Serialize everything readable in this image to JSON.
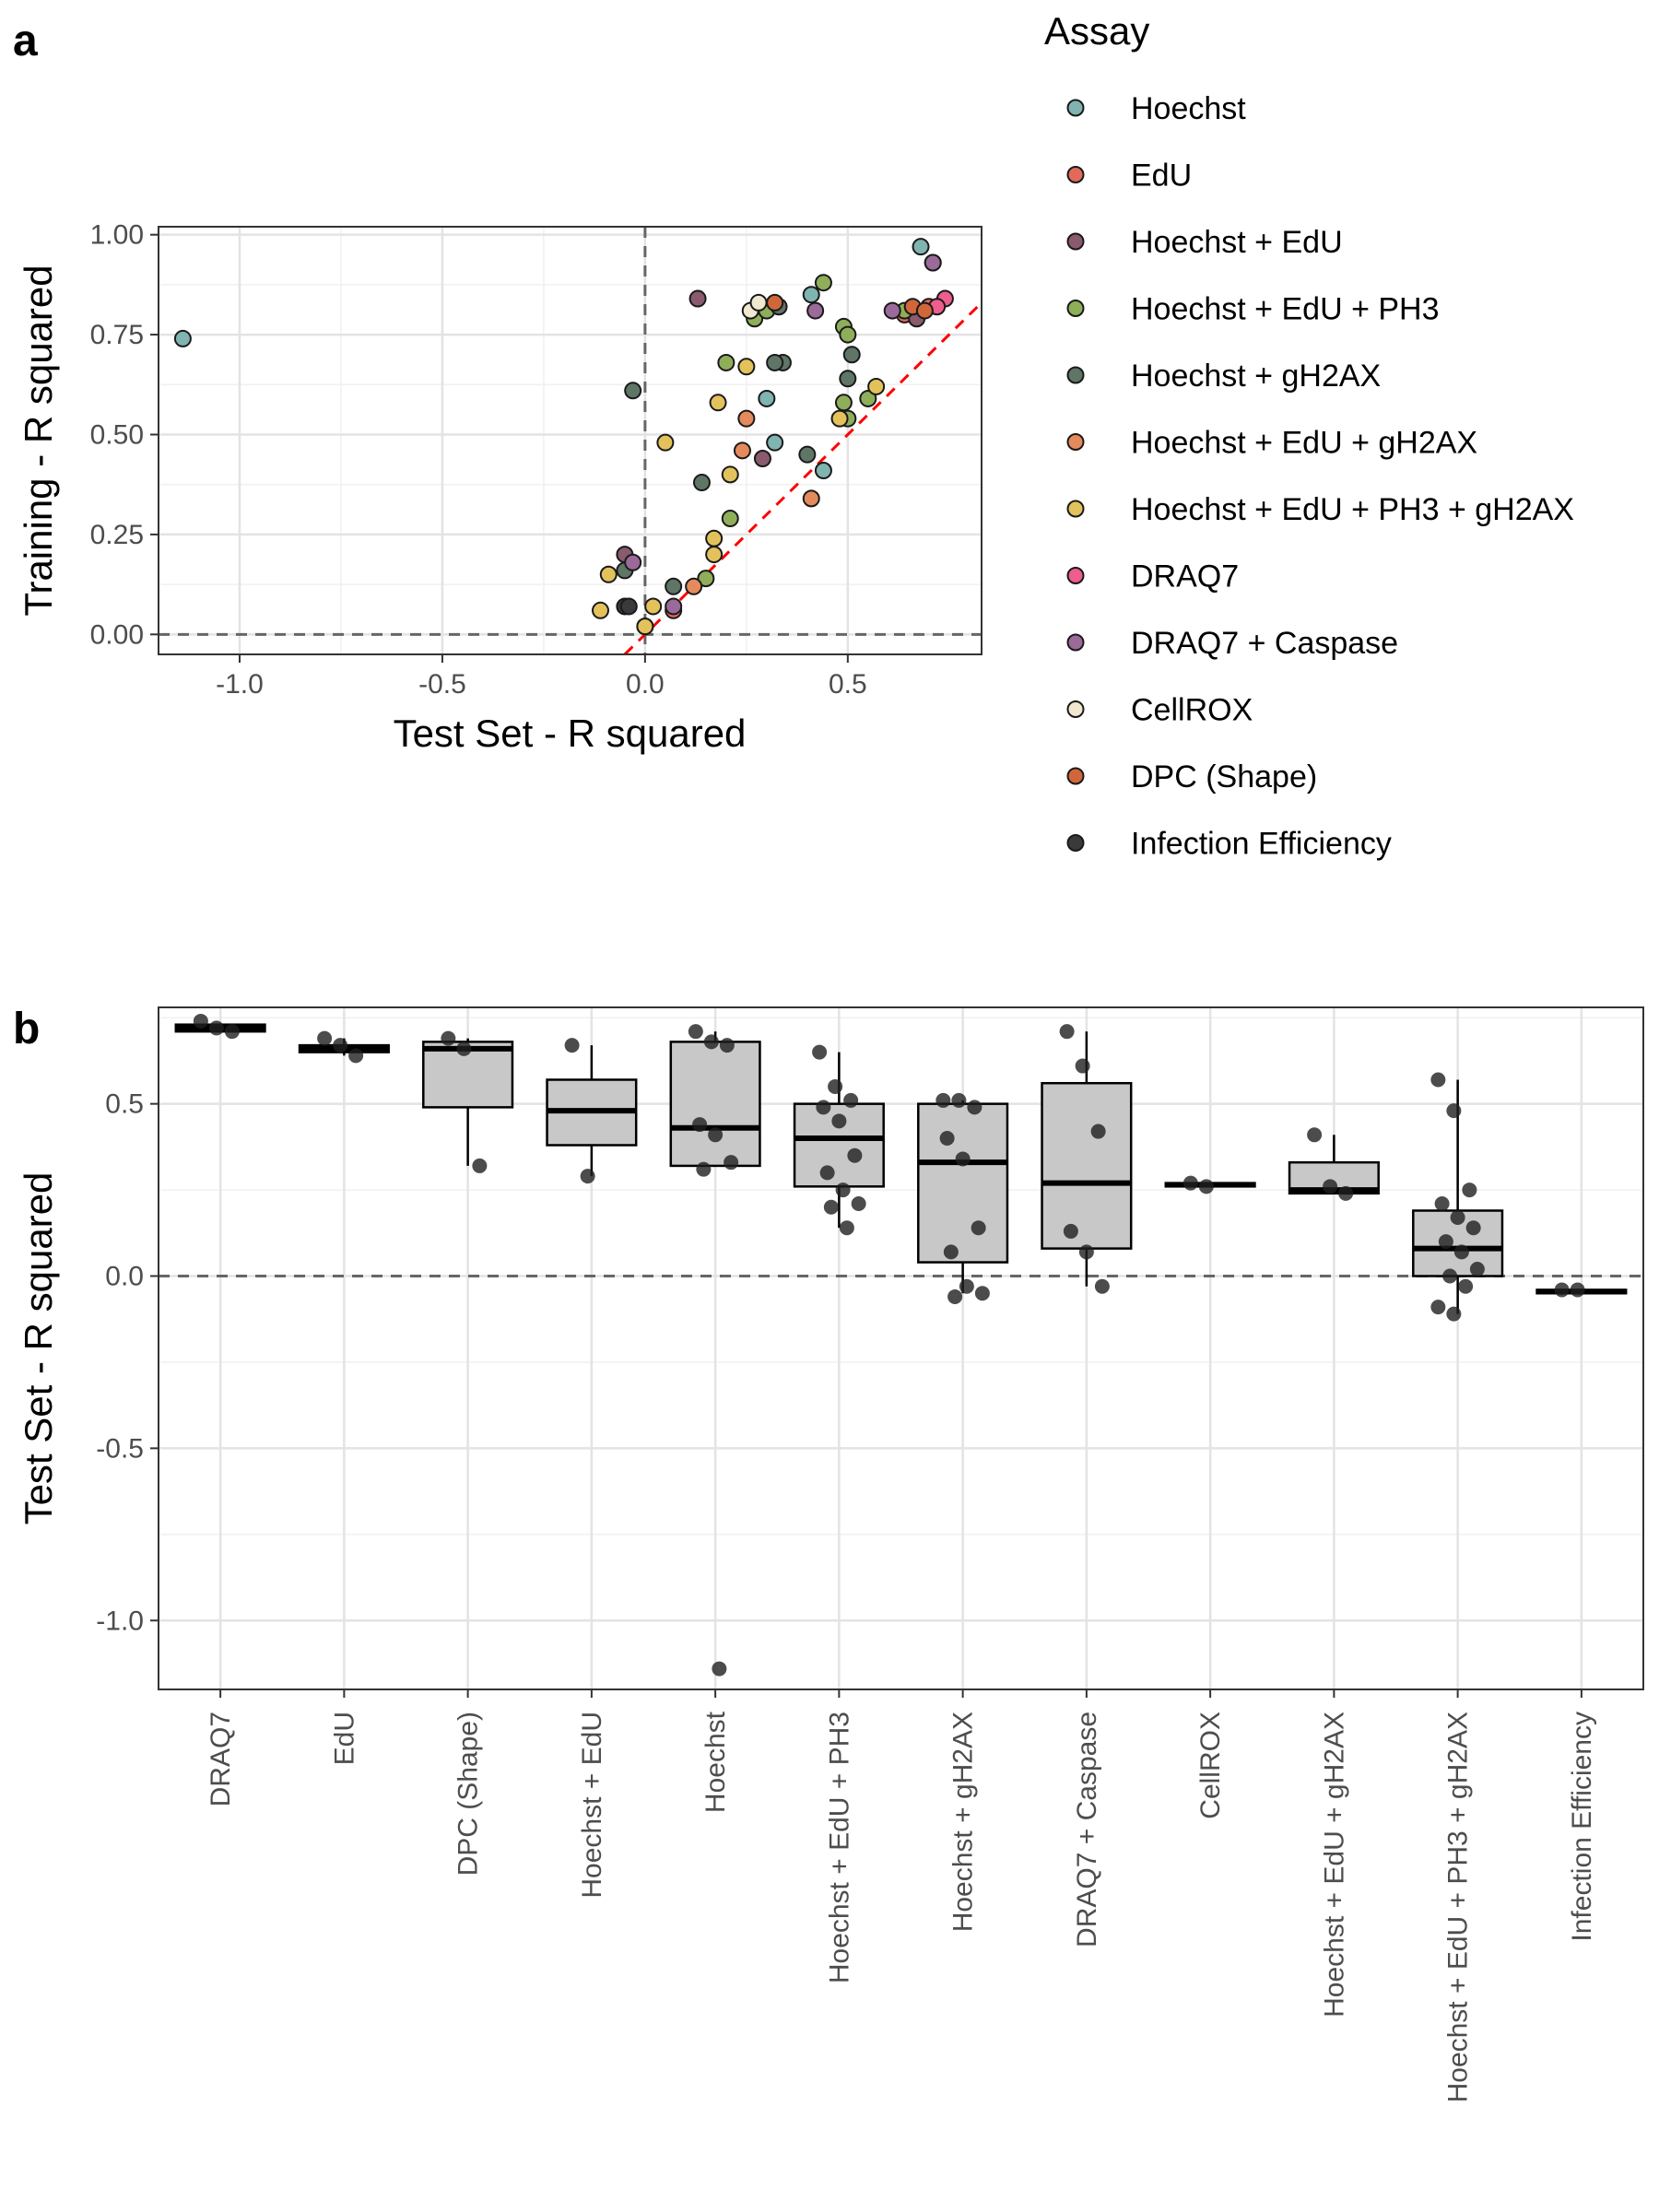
{
  "panels": {
    "a_label": "a",
    "b_label": "b"
  },
  "colors": {
    "Hoechst": "#7fb4b0",
    "EdU": "#e36a5b",
    "Hoechst + EdU": "#8a5a6e",
    "Hoechst + EdU + PH3": "#8fae5a",
    "Hoechst + gH2AX": "#5f7566",
    "Hoechst + EdU + gH2AX": "#e58a5c",
    "Hoechst + EdU + PH3 + gH2AX": "#e3c25c",
    "DRAQ7": "#ee5d8c",
    "DRAQ7 + Caspase": "#9a6a9a",
    "CellROX": "#f0e9cf",
    "DPC (Shape)": "#d0673a",
    "Infection Efficiency": "#3a3a3a",
    "refline": "#ff0000",
    "box_fill": "#c8c8c8"
  },
  "chart_data": [
    {
      "type": "scatter",
      "xlabel": "Test Set - R squared",
      "ylabel": "Training -  R squared",
      "xlim": [
        -1.2,
        0.83
      ],
      "ylim": [
        -0.05,
        1.02
      ],
      "xticks": [
        -1.0,
        -0.5,
        0.0,
        0.5
      ],
      "xtick_labels": [
        "-1.0",
        "-0.5",
        "0.0",
        "0.5"
      ],
      "yticks": [
        0.0,
        0.25,
        0.5,
        0.75,
        1.0
      ],
      "ytick_labels": [
        "0.00",
        "0.25",
        "0.50",
        "0.75",
        "1.00"
      ],
      "grid": true,
      "reference_lines": [
        "x = 0",
        "y = 0",
        "y = x"
      ],
      "legend": {
        "title": "Assay",
        "position": "right",
        "entries": [
          "Hoechst",
          "EdU",
          "Hoechst + EdU",
          "Hoechst + EdU + PH3",
          "Hoechst + gH2AX",
          "Hoechst + EdU + gH2AX",
          "Hoechst + EdU + PH3 + gH2AX",
          "DRAQ7",
          "DRAQ7 + Caspase",
          "CellROX",
          "DPC (Shape)",
          "Infection Efficiency"
        ]
      },
      "points": [
        {
          "a": "Hoechst",
          "x": -1.14,
          "y": 0.74
        },
        {
          "a": "Hoechst",
          "x": 0.68,
          "y": 0.97
        },
        {
          "a": "Hoechst",
          "x": 0.41,
          "y": 0.85
        },
        {
          "a": "Hoechst",
          "x": 0.3,
          "y": 0.59
        },
        {
          "a": "Hoechst",
          "x": 0.32,
          "y": 0.48
        },
        {
          "a": "Hoechst",
          "x": 0.44,
          "y": 0.41
        },
        {
          "a": "EdU",
          "x": 0.7,
          "y": 0.82
        },
        {
          "a": "EdU",
          "x": 0.64,
          "y": 0.8
        },
        {
          "a": "EdU",
          "x": 0.07,
          "y": 0.06
        },
        {
          "a": "Hoechst + EdU",
          "x": 0.13,
          "y": 0.84
        },
        {
          "a": "Hoechst + EdU",
          "x": 0.67,
          "y": 0.79
        },
        {
          "a": "Hoechst + EdU",
          "x": 0.29,
          "y": 0.44
        },
        {
          "a": "Hoechst + EdU",
          "x": -0.05,
          "y": 0.2
        },
        {
          "a": "Hoechst + EdU + PH3",
          "x": 0.44,
          "y": 0.88
        },
        {
          "a": "Hoechst + EdU + PH3",
          "x": 0.49,
          "y": 0.77
        },
        {
          "a": "Hoechst + EdU + PH3",
          "x": 0.27,
          "y": 0.79
        },
        {
          "a": "Hoechst + EdU + PH3",
          "x": 0.3,
          "y": 0.81
        },
        {
          "a": "Hoechst + EdU + PH3",
          "x": 0.2,
          "y": 0.68
        },
        {
          "a": "Hoechst + EdU + PH3",
          "x": 0.5,
          "y": 0.75
        },
        {
          "a": "Hoechst + EdU + PH3",
          "x": 0.49,
          "y": 0.58
        },
        {
          "a": "Hoechst + EdU + PH3",
          "x": 0.55,
          "y": 0.59
        },
        {
          "a": "Hoechst + EdU + PH3",
          "x": 0.5,
          "y": 0.54
        },
        {
          "a": "Hoechst + EdU + PH3",
          "x": 0.64,
          "y": 0.81
        },
        {
          "a": "Hoechst + EdU + PH3",
          "x": 0.21,
          "y": 0.29
        },
        {
          "a": "Hoechst + EdU + PH3",
          "x": 0.15,
          "y": 0.14
        },
        {
          "a": "Hoechst + gH2AX",
          "x": 0.33,
          "y": 0.82
        },
        {
          "a": "Hoechst + gH2AX",
          "x": 0.34,
          "y": 0.68
        },
        {
          "a": "Hoechst + gH2AX",
          "x": 0.32,
          "y": 0.68
        },
        {
          "a": "Hoechst + gH2AX",
          "x": 0.51,
          "y": 0.7
        },
        {
          "a": "Hoechst + gH2AX",
          "x": 0.5,
          "y": 0.64
        },
        {
          "a": "Hoechst + gH2AX",
          "x": 0.4,
          "y": 0.45
        },
        {
          "a": "Hoechst + gH2AX",
          "x": -0.03,
          "y": 0.61
        },
        {
          "a": "Hoechst + gH2AX",
          "x": 0.14,
          "y": 0.38
        },
        {
          "a": "Hoechst + gH2AX",
          "x": 0.07,
          "y": 0.12
        },
        {
          "a": "Hoechst + gH2AX",
          "x": -0.05,
          "y": 0.16
        },
        {
          "a": "Hoechst + EdU + gH2AX",
          "x": 0.24,
          "y": 0.46
        },
        {
          "a": "Hoechst + EdU + gH2AX",
          "x": 0.25,
          "y": 0.54
        },
        {
          "a": "Hoechst + EdU + gH2AX",
          "x": 0.41,
          "y": 0.34
        },
        {
          "a": "Hoechst + EdU + gH2AX",
          "x": 0.12,
          "y": 0.12
        },
        {
          "a": "Hoechst + EdU + gH2AX",
          "x": 0.0,
          "y": 0.02
        },
        {
          "a": "Hoechst + EdU + PH3 + gH2AX",
          "x": 0.25,
          "y": 0.67
        },
        {
          "a": "Hoechst + EdU + PH3 + gH2AX",
          "x": 0.18,
          "y": 0.58
        },
        {
          "a": "Hoechst + EdU + PH3 + gH2AX",
          "x": 0.05,
          "y": 0.48
        },
        {
          "a": "Hoechst + EdU + PH3 + gH2AX",
          "x": 0.57,
          "y": 0.62
        },
        {
          "a": "Hoechst + EdU + PH3 + gH2AX",
          "x": 0.48,
          "y": 0.54
        },
        {
          "a": "Hoechst + EdU + PH3 + gH2AX",
          "x": 0.21,
          "y": 0.4
        },
        {
          "a": "Hoechst + EdU + PH3 + gH2AX",
          "x": 0.17,
          "y": 0.24
        },
        {
          "a": "Hoechst + EdU + PH3 + gH2AX",
          "x": 0.17,
          "y": 0.2
        },
        {
          "a": "Hoechst + EdU + PH3 + gH2AX",
          "x": -0.09,
          "y": 0.15
        },
        {
          "a": "Hoechst + EdU + PH3 + gH2AX",
          "x": -0.11,
          "y": 0.06
        },
        {
          "a": "Hoechst + EdU + PH3 + gH2AX",
          "x": 0.02,
          "y": 0.07
        },
        {
          "a": "Hoechst + EdU + PH3 + gH2AX",
          "x": 0.0,
          "y": 0.02
        },
        {
          "a": "DRAQ7",
          "x": 0.74,
          "y": 0.84
        },
        {
          "a": "DRAQ7",
          "x": 0.71,
          "y": 0.93
        },
        {
          "a": "DRAQ7",
          "x": 0.72,
          "y": 0.82
        },
        {
          "a": "DRAQ7 + Caspase",
          "x": 0.42,
          "y": 0.81
        },
        {
          "a": "DRAQ7 + Caspase",
          "x": 0.61,
          "y": 0.81
        },
        {
          "a": "DRAQ7 + Caspase",
          "x": 0.71,
          "y": 0.93
        },
        {
          "a": "DRAQ7 + Caspase",
          "x": -0.03,
          "y": 0.18
        },
        {
          "a": "DRAQ7 + Caspase",
          "x": 0.07,
          "y": 0.07
        },
        {
          "a": "CellROX",
          "x": 0.26,
          "y": 0.81
        },
        {
          "a": "CellROX",
          "x": 0.28,
          "y": 0.83
        },
        {
          "a": "DPC (Shape)",
          "x": 0.32,
          "y": 0.83
        },
        {
          "a": "DPC (Shape)",
          "x": 0.66,
          "y": 0.82
        },
        {
          "a": "DPC (Shape)",
          "x": 0.69,
          "y": 0.81
        },
        {
          "a": "Infection Efficiency",
          "x": -0.05,
          "y": 0.07
        },
        {
          "a": "Infection Efficiency",
          "x": -0.04,
          "y": 0.07
        }
      ]
    },
    {
      "type": "box",
      "xlabel": "",
      "ylabel": "Test Set - R squared",
      "ylim": [
        -1.2,
        0.78
      ],
      "yticks": [
        -1.0,
        -0.5,
        0.0,
        0.5
      ],
      "ytick_labels": [
        "-1.0",
        "-0.5",
        "0.0",
        "0.5"
      ],
      "grid": true,
      "reference_lines": [
        "y = 0"
      ],
      "categories": [
        "DRAQ7",
        "EdU",
        "DPC (Shape)",
        "Hoechst + EdU",
        "Hoechst",
        "Hoechst + EdU + PH3",
        "Hoechst + gH2AX",
        "DRAQ7 + Caspase",
        "CellROX",
        "Hoechst + EdU + gH2AX",
        "Hoechst + EdU + PH3 + gH2AX",
        "Infection Efficiency"
      ],
      "boxes": [
        {
          "q1": 0.71,
          "median": 0.72,
          "q3": 0.73,
          "wlo": 0.71,
          "whi": 0.73,
          "points": [
            0.74,
            0.72,
            0.71
          ]
        },
        {
          "q1": 0.65,
          "median": 0.66,
          "q3": 0.67,
          "wlo": 0.64,
          "whi": 0.69,
          "points": [
            0.69,
            0.67,
            0.64
          ]
        },
        {
          "q1": 0.49,
          "median": 0.66,
          "q3": 0.68,
          "wlo": 0.32,
          "whi": 0.69,
          "points": [
            0.69,
            0.66,
            0.32
          ]
        },
        {
          "q1": 0.38,
          "median": 0.48,
          "q3": 0.57,
          "wlo": 0.29,
          "whi": 0.67,
          "points": [
            0.67,
            0.29
          ]
        },
        {
          "q1": 0.32,
          "median": 0.43,
          "q3": 0.68,
          "wlo": 0.32,
          "whi": 0.71,
          "points": [
            0.71,
            0.68,
            0.67,
            0.44,
            0.41,
            0.33,
            0.31,
            -1.14
          ]
        },
        {
          "q1": 0.26,
          "median": 0.4,
          "q3": 0.5,
          "wlo": 0.14,
          "whi": 0.65,
          "points": [
            0.65,
            0.55,
            0.51,
            0.49,
            0.45,
            0.35,
            0.3,
            0.25,
            0.21,
            0.2,
            0.14
          ]
        },
        {
          "q1": 0.04,
          "median": 0.33,
          "q3": 0.5,
          "wlo": -0.05,
          "whi": 0.51,
          "points": [
            0.51,
            0.51,
            0.49,
            0.4,
            0.34,
            0.14,
            0.07,
            -0.03,
            -0.05,
            -0.06
          ]
        },
        {
          "q1": 0.08,
          "median": 0.27,
          "q3": 0.56,
          "wlo": -0.03,
          "whi": 0.71,
          "points": [
            0.71,
            0.61,
            0.42,
            0.13,
            0.07,
            -0.03
          ]
        },
        {
          "q1": 0.26,
          "median": 0.265,
          "q3": 0.27,
          "wlo": 0.26,
          "whi": 0.27,
          "points": [
            0.27,
            0.26
          ]
        },
        {
          "q1": 0.24,
          "median": 0.25,
          "q3": 0.33,
          "wlo": 0.24,
          "whi": 0.41,
          "points": [
            0.41,
            0.26,
            0.24
          ]
        },
        {
          "q1": 0.0,
          "median": 0.08,
          "q3": 0.19,
          "wlo": -0.11,
          "whi": 0.57,
          "points": [
            0.57,
            0.48,
            0.25,
            0.21,
            0.17,
            0.14,
            0.1,
            0.07,
            0.02,
            0.0,
            -0.03,
            -0.09,
            -0.11
          ]
        },
        {
          "q1": -0.05,
          "median": -0.045,
          "q3": -0.04,
          "wlo": -0.05,
          "whi": -0.04,
          "points": [
            -0.04,
            -0.04
          ]
        }
      ]
    }
  ]
}
